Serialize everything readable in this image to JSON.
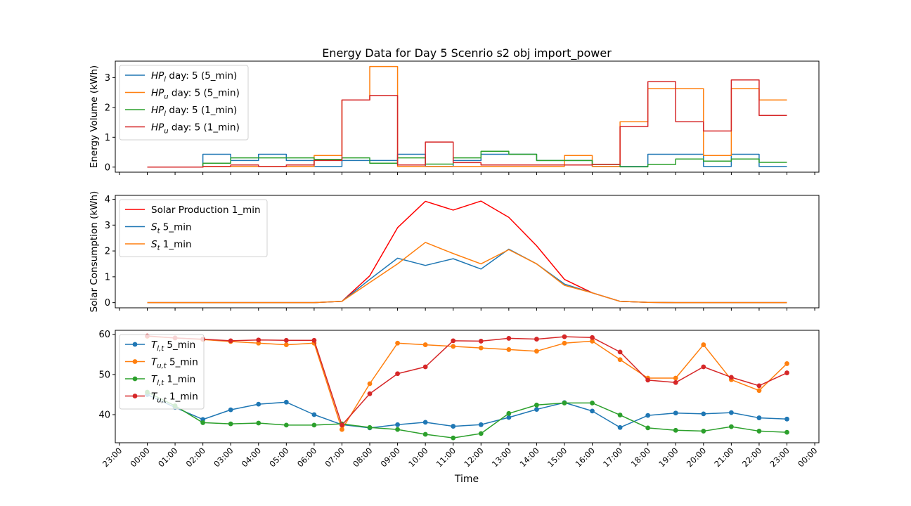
{
  "title": "Energy Data for Day 5 Scenrio s2 obj import_power",
  "xlabel": "Time",
  "x_ticks": [
    "23:00",
    "00:00",
    "01:00",
    "02:00",
    "03:00",
    "04:00",
    "05:00",
    "06:00",
    "07:00",
    "08:00",
    "09:00",
    "10:00",
    "11:00",
    "12:00",
    "13:00",
    "14:00",
    "15:00",
    "16:00",
    "17:00",
    "18:00",
    "19:00",
    "20:00",
    "21:00",
    "22:00",
    "23:00",
    "00:00"
  ],
  "chart_data": [
    {
      "type": "line",
      "step": true,
      "ylabel": "Energy Volume (kWh)",
      "ylim": [
        -0.17,
        3.55
      ],
      "yticks": [
        0,
        1,
        2,
        3
      ],
      "legend_position": "upper-left",
      "x_hours": [
        0,
        1,
        2,
        3,
        4,
        5,
        6,
        7,
        8,
        9,
        10,
        11,
        12,
        13,
        14,
        15,
        16,
        17,
        18,
        19,
        20,
        21,
        22,
        23
      ],
      "series": [
        {
          "name": "HP_l day: 5 (5_min)",
          "legend_main": "HP",
          "legend_sub": "l",
          "legend_rest": " day: 5 (5_min)",
          "color": "#1f77b4",
          "values": [
            0,
            0,
            0.43,
            0.22,
            0.43,
            0.22,
            0.02,
            0.22,
            0.22,
            0.43,
            0.02,
            0.22,
            0.43,
            0.43,
            0.22,
            0.22,
            0.02,
            0.02,
            0.43,
            0.43,
            0.02,
            0.43,
            0.02,
            0.02
          ]
        },
        {
          "name": "HP_u day: 5 (5_min)",
          "legend_main": "HP",
          "legend_sub": "u",
          "legend_rest": " day: 5 (5_min)",
          "color": "#ff7f0e",
          "values": [
            0,
            0,
            0.02,
            0.02,
            0.02,
            0.02,
            0.39,
            2.25,
            3.37,
            0.02,
            0.02,
            0.02,
            0.02,
            0.02,
            0.02,
            0.39,
            0.02,
            1.52,
            2.63,
            2.63,
            0.39,
            2.63,
            2.25,
            2.25
          ]
        },
        {
          "name": "HP_l day: 5 (1_min)",
          "legend_main": "HP",
          "legend_sub": "l",
          "legend_rest": " day: 5 (1_min)",
          "color": "#2ca02c",
          "values": [
            0,
            0,
            0.13,
            0.31,
            0.31,
            0.31,
            0.26,
            0.31,
            0.13,
            0.31,
            0.1,
            0.31,
            0.53,
            0.43,
            0.22,
            0.22,
            0.09,
            0.01,
            0.09,
            0.27,
            0.2,
            0.27,
            0.16,
            0.16
          ]
        },
        {
          "name": "HP_u day: 5 (1_min)",
          "legend_main": "HP",
          "legend_sub": "u",
          "legend_rest": " day: 5 (1_min)",
          "color": "#d62728",
          "values": [
            0,
            0,
            0.02,
            0.07,
            0.02,
            0.07,
            0.22,
            2.25,
            2.4,
            0.07,
            0.84,
            0.15,
            0.07,
            0.07,
            0.07,
            0.07,
            0.09,
            1.36,
            2.86,
            1.52,
            1.21,
            2.92,
            1.73,
            1.73
          ]
        }
      ]
    },
    {
      "type": "line",
      "ylabel": "Solar Consumption (kWh)",
      "ylim": [
        -0.2,
        4.15
      ],
      "yticks": [
        0,
        1,
        2,
        3,
        4
      ],
      "legend_position": "upper-left",
      "x_hours": [
        0,
        1,
        2,
        3,
        4,
        5,
        6,
        7,
        8,
        9,
        10,
        11,
        12,
        13,
        14,
        15,
        16,
        17,
        18,
        19,
        20,
        21,
        22,
        23
      ],
      "series": [
        {
          "name": "Solar Production 1_min",
          "legend_main": "Solar Production 1_min",
          "legend_sub": "",
          "legend_rest": "",
          "color": "#ff0000",
          "values": [
            0,
            0,
            0,
            0,
            0,
            0,
            0,
            0.05,
            1.04,
            2.9,
            3.92,
            3.58,
            3.93,
            3.3,
            2.2,
            0.9,
            0.38,
            0.05,
            0.01,
            0,
            0,
            0,
            0,
            0
          ]
        },
        {
          "name": "S_t 5_min",
          "legend_main": "S",
          "legend_sub": "t",
          "legend_rest": " 5_min",
          "color": "#1f77b4",
          "values": [
            0,
            0,
            0,
            0,
            0,
            0,
            0,
            0.05,
            0.9,
            1.72,
            1.44,
            1.7,
            1.3,
            2.07,
            1.5,
            0.72,
            0.38,
            0.05,
            0.01,
            0,
            0,
            0,
            0,
            0
          ]
        },
        {
          "name": "S_t 1_min",
          "legend_main": "S",
          "legend_sub": "t",
          "legend_rest": " 1_min",
          "color": "#ff7f0e",
          "values": [
            0,
            0,
            0,
            0,
            0,
            0,
            0,
            0.05,
            0.78,
            1.5,
            2.33,
            1.9,
            1.5,
            2.05,
            1.5,
            0.67,
            0.38,
            0.05,
            0.01,
            0,
            0,
            0,
            0,
            0
          ]
        }
      ]
    },
    {
      "type": "line",
      "markers": true,
      "ylim": [
        33.0,
        61.0
      ],
      "yticks": [
        40,
        50,
        60
      ],
      "legend_position": "upper-left",
      "x_hours": [
        0,
        1,
        2,
        3,
        4,
        5,
        6,
        7,
        8,
        9,
        10,
        11,
        12,
        13,
        14,
        15,
        16,
        17,
        18,
        19,
        20,
        21,
        22,
        23
      ],
      "series": [
        {
          "name": "T_l,t 5_min",
          "legend_main": "T",
          "legend_sub": "l,t",
          "legend_rest": " 5_min",
          "color": "#1f77b4",
          "values": [
            45.0,
            41.8,
            38.8,
            41.2,
            42.6,
            43.1,
            40.0,
            37.5,
            36.7,
            37.5,
            38.1,
            37.1,
            37.5,
            39.3,
            41.3,
            43.0,
            40.9,
            36.8,
            39.8,
            40.4,
            40.2,
            40.5,
            39.2,
            38.9
          ]
        },
        {
          "name": "T_u,t 5_min",
          "legend_main": "T",
          "legend_sub": "u,t",
          "legend_rest": " 5_min",
          "color": "#ff7f0e",
          "values": [
            59.5,
            59.1,
            58.7,
            58.2,
            57.8,
            57.4,
            57.8,
            36.3,
            47.7,
            57.8,
            57.4,
            57.0,
            56.6,
            56.2,
            55.8,
            57.8,
            58.3,
            53.7,
            49.1,
            49.1,
            57.4,
            48.7,
            46.0,
            52.7
          ]
        },
        {
          "name": "T_l,t 1_min",
          "legend_main": "T",
          "legend_sub": "l,t",
          "legend_rest": " 1_min",
          "color": "#2ca02c",
          "values": [
            45.6,
            42.2,
            38.0,
            37.7,
            37.9,
            37.4,
            37.4,
            37.7,
            36.8,
            36.3,
            35.1,
            34.2,
            35.3,
            40.3,
            42.4,
            42.9,
            42.9,
            39.9,
            36.7,
            36.1,
            35.9,
            37.0,
            35.9,
            35.6
          ]
        },
        {
          "name": "T_u,t 1_min",
          "legend_main": "T",
          "legend_sub": "u,t",
          "legend_rest": " 1_min",
          "color": "#d62728",
          "values": [
            59.6,
            59.1,
            58.8,
            58.4,
            58.6,
            58.5,
            58.5,
            37.4,
            45.2,
            50.2,
            51.9,
            58.4,
            58.3,
            59.0,
            58.8,
            59.4,
            59.2,
            55.6,
            48.6,
            48.0,
            51.9,
            49.3,
            47.2,
            50.4
          ]
        }
      ]
    }
  ]
}
